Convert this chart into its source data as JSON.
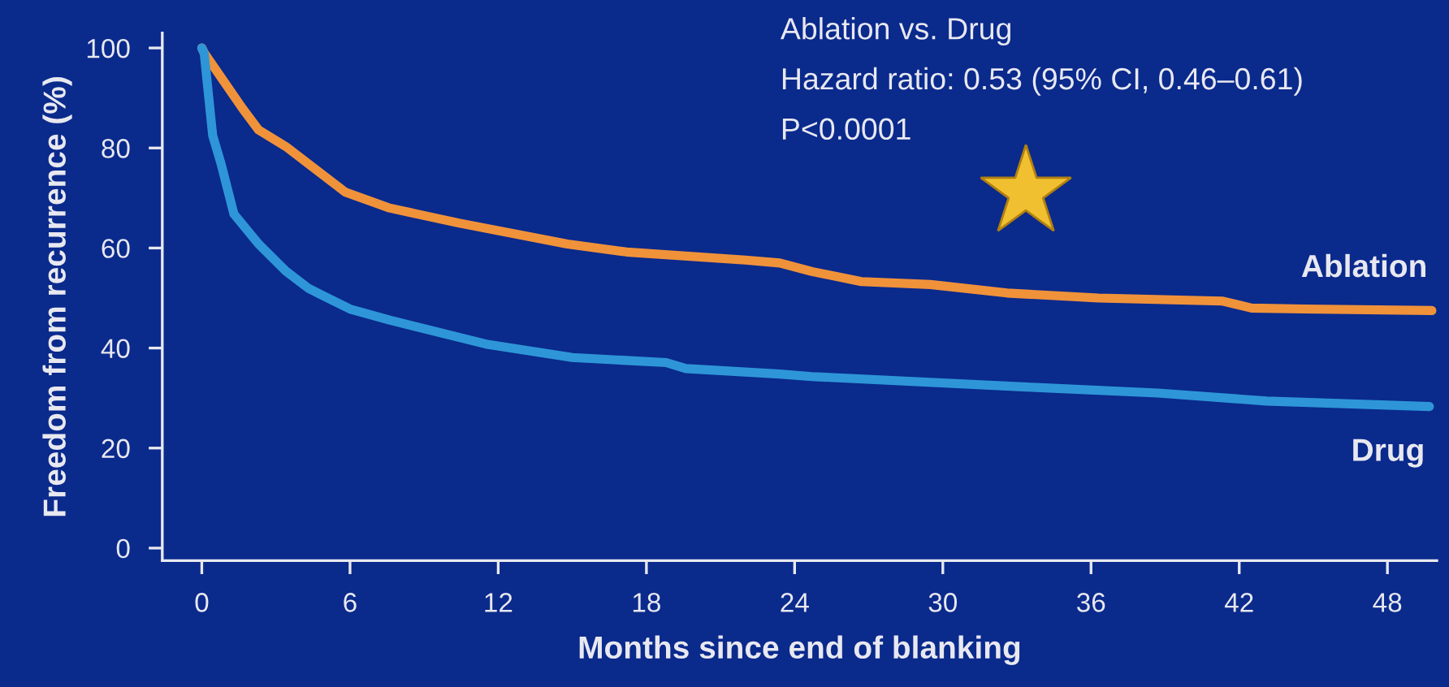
{
  "chart_data": {
    "type": "line",
    "xlabel": "Months since end of blanking",
    "ylabel": "Freedom from recurrence (%)",
    "annotations": [
      "Ablation vs. Drug",
      "Hazard ratio: 0.53 (95% CI, 0.46–0.61)",
      "P<0.0001"
    ],
    "xlim": [
      -1.6,
      50
    ],
    "ylim": [
      -2.5,
      103
    ],
    "xticks": [
      0,
      6,
      12,
      18,
      24,
      30,
      36,
      42,
      48
    ],
    "yticks": [
      0,
      20,
      40,
      60,
      80,
      100
    ],
    "grid": false,
    "legend": false,
    "marker": "none",
    "line_style": "solid",
    "series": [
      {
        "name": "Ablation",
        "color": "#f0923a",
        "x": [
          0,
          0.1,
          1.65,
          2.3,
          3.4,
          5.8,
          7.6,
          10.4,
          14.8,
          17.2,
          22,
          23.4,
          24.7,
          26.7,
          29.5,
          32.6,
          36.3,
          41.3,
          42.5,
          44.6,
          49.8
        ],
        "values": [
          100,
          99,
          87.9,
          83.6,
          80.3,
          71.2,
          68,
          65,
          60.8,
          59.2,
          57.6,
          57,
          55.3,
          53.3,
          52.7,
          51,
          50,
          49.4,
          48,
          47.8,
          47.5
        ]
      },
      {
        "name": "Drug",
        "color": "#2e96d8",
        "x": [
          0,
          0.1,
          0.44,
          0.77,
          1.3,
          2.3,
          3.4,
          4.3,
          4.9,
          6,
          7.6,
          11.5,
          15,
          18.8,
          19.6,
          23.4,
          24.7,
          33.4,
          38.7,
          43.1,
          49.7
        ],
        "values": [
          100,
          98.8,
          82.5,
          77,
          66.8,
          60.8,
          55.4,
          52,
          50.5,
          47.8,
          45.6,
          40.8,
          38.1,
          37.1,
          35.9,
          34.8,
          34.3,
          32.2,
          31,
          29.4,
          28.3
        ]
      }
    ]
  }
}
